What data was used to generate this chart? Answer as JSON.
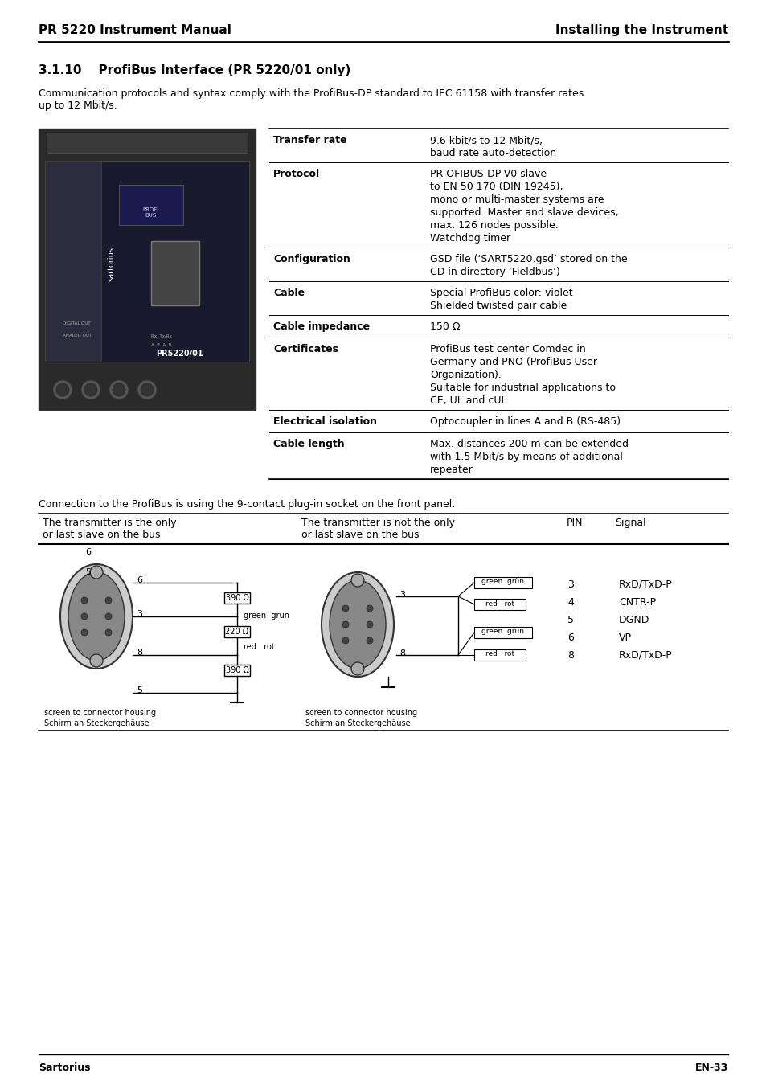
{
  "page_title_left": "PR 5220 Instrument Manual",
  "page_title_right": "Installing the Instrument",
  "section_title": "3.1.10    ProfiBus Interface (PR 5220/01 only)",
  "intro_text": "Communication protocols and syntax comply with the ProfiBus-DP standard to IEC 61158 with transfer rates\nup to 12 Mbit/s.",
  "table_rows": [
    {
      "label": "Transfer rate",
      "value": "9.6 kbit/s to 12 Mbit/s,\nbaud rate auto-detection"
    },
    {
      "label": "Protocol",
      "value": "PR OFIBUS-DP-V0 slave\nto EN 50 170 (DIN 19245),\nmono or multi-master systems are\nsupported. Master and slave devices,\nmax. 126 nodes possible.\nWatchdog timer"
    },
    {
      "label": "Configuration",
      "value": "GSD file (‘SART5220.gsd’ stored on the\nCD in directory ‘Fieldbus’)"
    },
    {
      "label": "Cable",
      "value": "Special ProfiBus color: violet\nShielded twisted pair cable"
    },
    {
      "label": "Cable impedance",
      "value": "150 Ω"
    },
    {
      "label": "Certificates",
      "value": "ProfiBus test center Comdec in\nGermany and PNO (ProfiBus User\nOrganization).\nSuitable for industrial applications to\nCE, UL and cUL"
    },
    {
      "label": "Electrical isolation",
      "value": "Optocoupler in lines A and B (RS-485)"
    },
    {
      "label": "Cable length",
      "value": "Max. distances 200 m can be extended\nwith 1.5 Mbit/s by means of additional\nrepeater"
    }
  ],
  "connection_text": "Connection to the ProfiBus is using the 9-contact plug-in socket on the front panel.",
  "col_headers": [
    "The transmitter is the only\nor last slave on the bus",
    "The transmitter is not the only\nor last slave on the bus",
    "PIN",
    "Signal"
  ],
  "pin_rows": [
    {
      "pin": "3",
      "signal": "RxD/TxD-P"
    },
    {
      "pin": "4",
      "signal": "CNTR-P"
    },
    {
      "pin": "5",
      "signal": "DGND"
    },
    {
      "pin": "6",
      "signal": "VP"
    },
    {
      "pin": "8",
      "signal": "RxD/TxD-P"
    }
  ],
  "footer_left": "Sartorius",
  "footer_right": "EN-33",
  "bg_color": "#ffffff",
  "text_color": "#000000",
  "line_color": "#000000"
}
